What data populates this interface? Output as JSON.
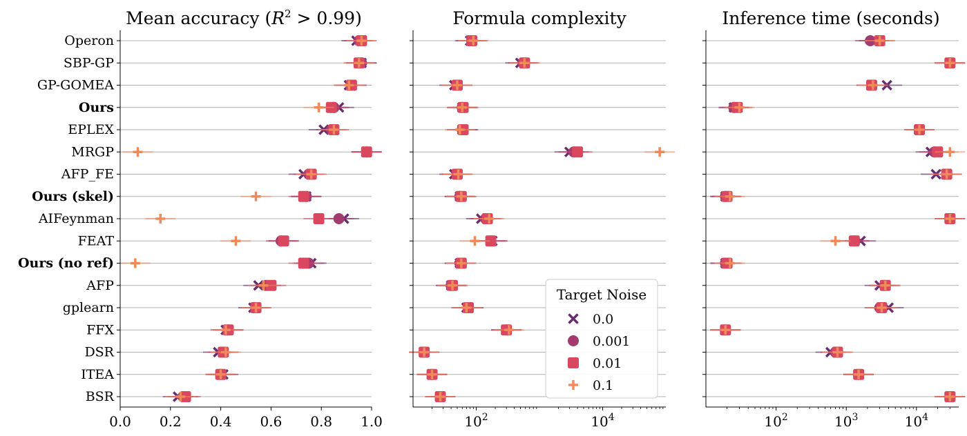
{
  "chart_data": [
    {
      "type": "scatter",
      "title_prefix": "Mean accuracy (",
      "title_math_base": "R",
      "title_math_sup": "2",
      "title_math_rest": " > 0.99)",
      "xlim": [
        0,
        1
      ],
      "xscale": "linear",
      "xticks": [
        "0.0",
        "0.2",
        "0.4",
        "0.6",
        "0.8",
        "1.0"
      ],
      "xtick_values": [
        0,
        0.2,
        0.4,
        0.6,
        0.8,
        1.0
      ],
      "grid": "horizontal",
      "series": [
        {
          "name": "0.0",
          "values": [
            0.94,
            0.96,
            0.91,
            0.87,
            0.81,
            0.98,
            0.73,
            0.74,
            0.89,
            0.65,
            0.76,
            0.55,
            0.53,
            0.42,
            0.39,
            0.41,
            0.23
          ]
        },
        {
          "name": "0.001",
          "values": [
            0.95,
            0.96,
            0.92,
            0.85,
            0.84,
            0.98,
            0.75,
            0.74,
            0.87,
            0.64,
            0.75,
            0.58,
            0.54,
            0.43,
            0.41,
            0.4,
            0.25
          ]
        },
        {
          "name": "0.01",
          "values": [
            0.96,
            0.95,
            0.92,
            0.84,
            0.85,
            0.98,
            0.76,
            0.73,
            0.79,
            0.65,
            0.73,
            0.6,
            0.54,
            0.43,
            0.41,
            0.4,
            0.26
          ]
        },
        {
          "name": "0.1",
          "values": [
            0.96,
            0.95,
            0.91,
            0.79,
            0.85,
            0.07,
            0.76,
            0.54,
            0.16,
            0.46,
            0.06,
            0.57,
            0.54,
            0.42,
            0.42,
            0.4,
            0.24
          ]
        }
      ]
    },
    {
      "type": "scatter",
      "title": "Formula complexity",
      "xscale": "log",
      "xlim": [
        10,
        100000
      ],
      "xticks": [
        "10",
        "10"
      ],
      "xtick_exponents": [
        "2",
        "4"
      ],
      "xtick_values": [
        100,
        10000
      ],
      "grid": "horizontal",
      "series": [
        {
          "name": "0.0",
          "values": [
            80,
            500,
            45,
            60,
            60,
            3000,
            45,
            55,
            120,
            180,
            55,
            40,
            70,
            300,
            15,
            20,
            27
          ]
        },
        {
          "name": "0.001",
          "values": [
            85,
            550,
            50,
            60,
            60,
            3500,
            50,
            55,
            140,
            170,
            55,
            40,
            75,
            300,
            15,
            20,
            27
          ]
        },
        {
          "name": "0.01",
          "values": [
            85,
            580,
            50,
            62,
            62,
            4000,
            50,
            58,
            150,
            170,
            58,
            42,
            75,
            300,
            15,
            20,
            27
          ]
        },
        {
          "name": "0.1",
          "values": [
            90,
            580,
            50,
            60,
            55,
            80000,
            52,
            58,
            160,
            95,
            58,
            42,
            70,
            330,
            15,
            20,
            27
          ]
        }
      ]
    },
    {
      "type": "scatter",
      "title": "Inference time (seconds)",
      "xscale": "log",
      "xlim": [
        10,
        40000
      ],
      "xticks": [
        "10",
        "10",
        "10"
      ],
      "xtick_exponents": [
        "2",
        "3",
        "4"
      ],
      "xtick_values": [
        100,
        1000,
        10000
      ],
      "grid": "horizontal",
      "series": [
        {
          "name": "0.0",
          "values": [
            2500,
            30000,
            3800,
            25,
            11000,
            16000,
            19000,
            19,
            30000,
            1600,
            19,
            3000,
            4000,
            19,
            600,
            1500,
            30000
          ]
        },
        {
          "name": "0.001",
          "values": [
            2200,
            30000,
            2300,
            25,
            11000,
            18000,
            27000,
            19,
            30000,
            1300,
            19,
            3500,
            3000,
            19,
            700,
            1500,
            30000
          ]
        },
        {
          "name": "0.01",
          "values": [
            3000,
            30000,
            2300,
            28,
            11000,
            20000,
            27000,
            20,
            30000,
            1300,
            20,
            3600,
            3200,
            19,
            750,
            1500,
            30000
          ]
        },
        {
          "name": "0.1",
          "values": [
            3000,
            30000,
            2400,
            30,
            11000,
            30000,
            27000,
            22,
            30000,
            700,
            22,
            3600,
            3200,
            19,
            750,
            1500,
            30000
          ]
        }
      ]
    }
  ],
  "methods": [
    {
      "label": "Operon",
      "bold": false
    },
    {
      "label": "SBP-GP",
      "bold": false
    },
    {
      "label": "GP-GOMEA",
      "bold": false
    },
    {
      "label": "Ours",
      "bold": true
    },
    {
      "label": "EPLEX",
      "bold": false
    },
    {
      "label": "MRGP",
      "bold": false
    },
    {
      "label": "AFP_FE",
      "bold": false
    },
    {
      "label": "Ours (skel)",
      "bold": true
    },
    {
      "label": "AIFeynman",
      "bold": false
    },
    {
      "label": "FEAT",
      "bold": false
    },
    {
      "label": "Ours (no ref)",
      "bold": true
    },
    {
      "label": "AFP",
      "bold": false
    },
    {
      "label": "gplearn",
      "bold": false
    },
    {
      "label": "FFX",
      "bold": false
    },
    {
      "label": "DSR",
      "bold": false
    },
    {
      "label": "ITEA",
      "bold": false
    },
    {
      "label": "BSR",
      "bold": false
    }
  ],
  "legend": {
    "title": "Target Noise",
    "placement": "lower-right of middle panel",
    "entries": [
      {
        "label": "0.0",
        "marker": "x",
        "color": "#6a2c70"
      },
      {
        "label": "0.001",
        "marker": "circle",
        "color": "#a23b6e"
      },
      {
        "label": "0.01",
        "marker": "square",
        "color": "#d9485f"
      },
      {
        "label": "0.1",
        "marker": "plus",
        "color": "#f08a5a"
      }
    ]
  }
}
